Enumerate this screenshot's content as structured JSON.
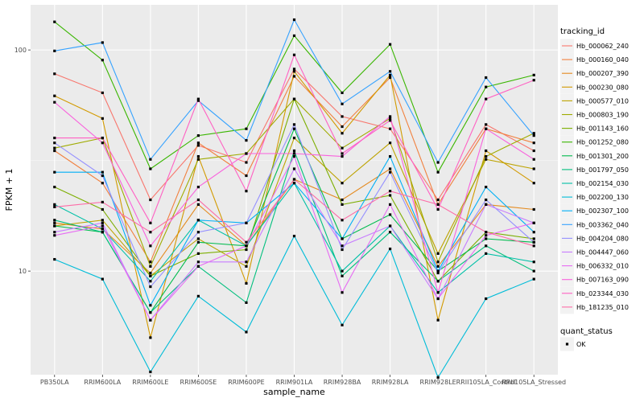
{
  "chart_data": {
    "type": "line",
    "xlabel": "sample_name",
    "ylabel": "FPKM + 1",
    "y_scale": "log10",
    "ylim": [
      3.4,
      160
    ],
    "y_ticks": [
      {
        "value": 10,
        "label": "10"
      },
      {
        "value": 100,
        "label": "100"
      }
    ],
    "x": [
      "PB350LA",
      "RRIM600LA",
      "RRIM600LE",
      "RRIM600SE",
      "RRIM600PE",
      "RRIM901LA",
      "RRIM928BA",
      "RRIM928LA",
      "RRIM928LE",
      "RRII105LA_Control",
      "RRII105LA_Stressed"
    ],
    "x_tick_labels": [
      "PB350LA",
      "RRIM600LA",
      "RRIM600LE",
      "RRIM600SE",
      "RRIM600PE",
      "RRIM901LA",
      "RRIM928BA",
      "RRIM928LA",
      "RRIM928LE",
      "RRII105LA_Control",
      "RRII105LA_Stressed"
    ],
    "grid": true,
    "background": "#ebebeb",
    "legend": {
      "placement": "right",
      "title": "tracking_id",
      "status_title": "quant_status",
      "status_entries": [
        "OK"
      ]
    },
    "series": [
      {
        "name": "Hb_000062_240",
        "color": "#f8766d",
        "values": [
          78,
          64,
          21,
          37,
          31,
          82,
          50,
          44,
          21,
          46,
          35
        ]
      },
      {
        "name": "Hb_000160_040",
        "color": "#f1803e",
        "values": [
          35,
          25,
          11,
          38,
          27,
          76,
          45,
          75,
          20,
          44,
          38
        ]
      },
      {
        "name": "Hb_000207_390",
        "color": "#e48b20",
        "values": [
          16.5,
          15.5,
          9.8,
          20,
          13,
          26,
          21,
          29,
          10.5,
          20,
          19
        ]
      },
      {
        "name": "Hb_000230_080",
        "color": "#d29a00",
        "values": [
          62,
          49,
          5,
          33,
          8.8,
          80,
          42,
          77,
          6,
          35,
          25
        ]
      },
      {
        "name": "Hb_000577_010",
        "color": "#bda300",
        "values": [
          16,
          17,
          9.5,
          14,
          10.5,
          40,
          25,
          38,
          12,
          32,
          29
        ]
      },
      {
        "name": "Hb_000803_190",
        "color": "#9fab00",
        "values": [
          36,
          40,
          10.5,
          32,
          34,
          60,
          36,
          49,
          11,
          33,
          42
        ]
      },
      {
        "name": "Hb_001143_160",
        "color": "#7cae00",
        "values": [
          24,
          19,
          9.5,
          12,
          12.5,
          60,
          20,
          22,
          9,
          15,
          14
        ]
      },
      {
        "name": "Hb_001252_080",
        "color": "#39b600",
        "values": [
          134,
          90,
          29,
          41,
          44,
          116,
          64,
          106,
          28,
          68,
          77
        ]
      },
      {
        "name": "Hb_001301_200",
        "color": "#00bb4e",
        "values": [
          16,
          15,
          6.5,
          13.5,
          13,
          44,
          14,
          18,
          10,
          14,
          13.5
        ]
      },
      {
        "name": "Hb_001797_050",
        "color": "#00bf7d",
        "values": [
          17,
          15,
          6.5,
          10.5,
          7.2,
          35,
          9.5,
          15,
          9,
          13,
          10
        ]
      },
      {
        "name": "Hb_002154_030",
        "color": "#00c0a7",
        "values": [
          20,
          15.5,
          9,
          17,
          13,
          25,
          10,
          16,
          8,
          12,
          11
        ]
      },
      {
        "name": "Hb_002200_130",
        "color": "#00bcd8",
        "values": [
          11.3,
          9.2,
          3.5,
          7.7,
          5.3,
          14.4,
          5.7,
          12.6,
          3.3,
          7.5,
          9.2
        ]
      },
      {
        "name": "Hb_002307_100",
        "color": "#00b0f6",
        "values": [
          28,
          28,
          7,
          17,
          16.5,
          25,
          14,
          33,
          10,
          24,
          15
        ]
      },
      {
        "name": "Hb_003362_040",
        "color": "#35a2ff",
        "values": [
          99,
          108,
          32,
          59,
          39,
          137,
          57,
          80,
          31,
          75,
          41
        ]
      },
      {
        "name": "Hb_004204_080",
        "color": "#9590ff",
        "values": [
          38,
          27,
          8.5,
          15,
          16.5,
          46,
          12.5,
          28,
          9.8,
          21,
          13.5
        ]
      },
      {
        "name": "Hb_004447_060",
        "color": "#c77cff",
        "values": [
          15,
          16.5,
          6,
          11,
          11,
          29,
          13,
          16,
          7.5,
          20,
          16.5
        ]
      },
      {
        "name": "Hb_006332_010",
        "color": "#e76bf3",
        "values": [
          14.5,
          16,
          6,
          10.5,
          13,
          33,
          8,
          20,
          7.5,
          14.5,
          16.5
        ]
      },
      {
        "name": "Hb_007163_090",
        "color": "#f962dd",
        "values": [
          58,
          38,
          13,
          24,
          34,
          34,
          33,
          50,
          8,
          44,
          32
        ]
      },
      {
        "name": "Hb_023344_030",
        "color": "#ff61c3",
        "values": [
          40,
          40,
          16.5,
          60,
          23,
          95,
          34,
          48,
          19,
          60,
          73
        ]
      },
      {
        "name": "Hb_181235_010",
        "color": "#fd6ca7",
        "values": [
          19.5,
          20.5,
          15,
          21,
          13.5,
          26,
          17,
          23,
          20,
          15,
          13
        ]
      }
    ]
  }
}
